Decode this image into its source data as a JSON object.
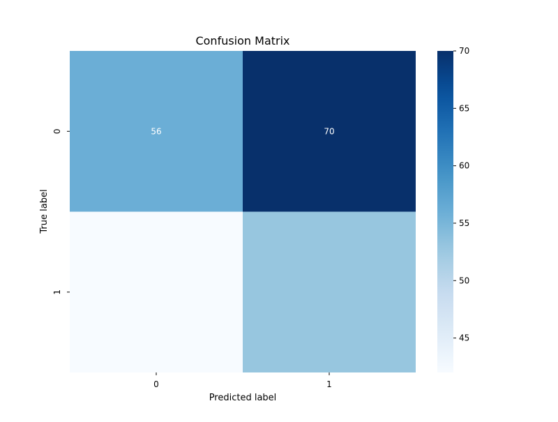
{
  "chart_data": {
    "type": "heatmap",
    "title": "Confusion Matrix",
    "xlabel": "Predicted label",
    "ylabel": "True label",
    "x_categories": [
      "0",
      "1"
    ],
    "y_categories": [
      "0",
      "1"
    ],
    "values": [
      [
        56,
        70
      ],
      [
        42,
        53
      ]
    ],
    "cell_labels": [
      [
        "56",
        "70"
      ],
      [
        "",
        ""
      ]
    ],
    "colormap": "Blues",
    "color_range": [
      42,
      70
    ],
    "colorbar_ticks": [
      45,
      50,
      55,
      60,
      65,
      70
    ]
  }
}
